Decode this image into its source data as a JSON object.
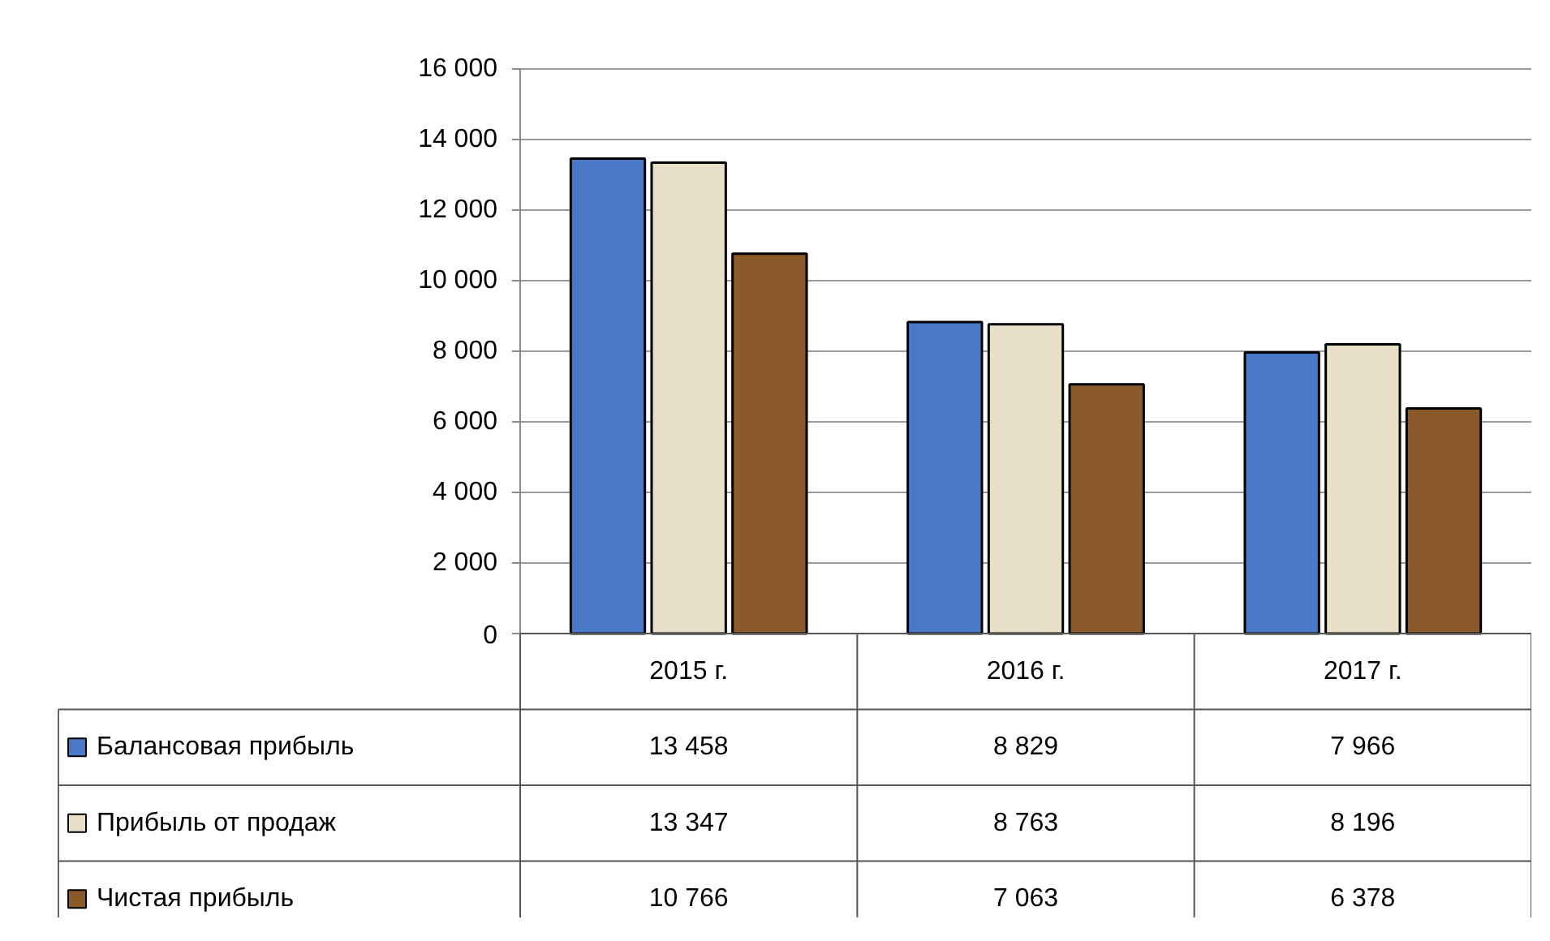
{
  "chart_data": {
    "type": "bar",
    "categories": [
      "2015 г.",
      "2016 г.",
      "2017 г."
    ],
    "series": [
      {
        "name": "Балансовая прибыль",
        "color": "#4a78c8",
        "values": [
          13458,
          8829,
          7966
        ]
      },
      {
        "name": "Прибыль от продаж",
        "color": "#e8dfc8",
        "values": [
          13347,
          8763,
          8196
        ]
      },
      {
        "name": "Чистая прибыль",
        "color": "#8b5a2b",
        "values": [
          10766,
          7063,
          6378
        ]
      }
    ],
    "ylim": [
      0,
      16000
    ],
    "yticks": [
      {
        "value": 0,
        "label": "0"
      },
      {
        "value": 2000,
        "label": "2 000"
      },
      {
        "value": 4000,
        "label": "4 000"
      },
      {
        "value": 6000,
        "label": "6 000"
      },
      {
        "value": 8000,
        "label": "8 000"
      },
      {
        "value": 10000,
        "label": "10 000"
      },
      {
        "value": 12000,
        "label": "12 000"
      },
      {
        "value": 14000,
        "label": "14 000"
      },
      {
        "value": 16000,
        "label": "16 000"
      }
    ],
    "grid": "y",
    "data_labels": true,
    "legend": "bottom left"
  }
}
